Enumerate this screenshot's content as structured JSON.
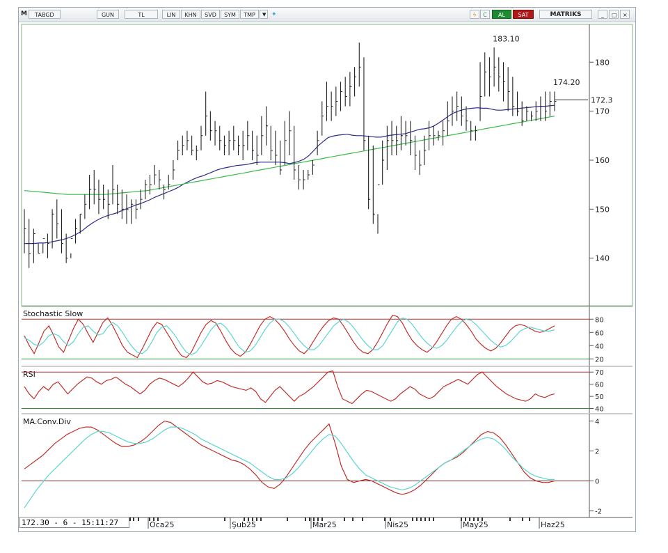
{
  "toolbar": {
    "m": "M",
    "symbol": "TABGD",
    "period": "GUN",
    "currency": "TL",
    "buttons": [
      "LIN",
      "KHN",
      "SVD",
      "SYM",
      "TMP"
    ],
    "al": "AL",
    "sat": "SAT",
    "brand": "MATRIKS"
  },
  "status": "172.30 - 6 - 15:11:27",
  "chart_data": [
    {
      "type": "ohlc",
      "panel": "price",
      "y_ticks": [
        140,
        150,
        160,
        170,
        180
      ],
      "ylim": [
        131,
        187
      ],
      "last_price_label": "172.3",
      "annotations": [
        {
          "text": "183.10",
          "index": 104,
          "value": 183.1
        },
        {
          "text": "174.20",
          "index": 117,
          "value": 174.2
        }
      ],
      "highs": [
        150,
        148,
        146,
        143,
        141,
        145,
        150,
        152,
        150,
        145,
        141,
        148,
        149,
        153,
        157,
        158,
        156,
        155,
        154,
        159,
        155,
        154,
        153,
        152,
        152,
        154,
        156,
        157,
        159,
        158,
        155,
        157,
        160,
        164,
        165,
        166,
        165,
        163,
        167,
        174,
        170,
        168,
        167,
        165,
        166,
        167,
        165,
        166,
        168,
        166,
        165,
        169,
        171,
        167,
        166,
        164,
        168,
        170,
        167,
        159,
        158,
        158,
        160,
        166,
        172,
        176,
        174,
        175,
        176,
        177,
        178,
        179,
        184,
        181,
        165,
        163,
        149,
        164,
        167,
        168,
        167,
        169,
        168,
        168,
        165,
        162,
        165,
        168,
        167,
        166,
        168,
        172,
        173,
        174,
        173,
        171,
        168,
        167,
        180,
        182,
        181,
        183,
        181,
        180,
        179,
        177,
        174,
        172,
        171,
        170,
        172,
        173,
        174,
        174,
        174
      ],
      "lows": [
        141,
        138,
        139,
        141,
        143,
        140,
        142,
        144,
        141,
        139,
        140,
        143,
        145,
        148,
        150,
        151,
        149,
        150,
        148,
        151,
        149,
        148,
        147,
        147,
        148,
        150,
        152,
        153,
        155,
        154,
        152,
        154,
        156,
        160,
        161,
        162,
        161,
        160,
        162,
        165,
        164,
        163,
        162,
        161,
        161,
        162,
        161,
        160,
        162,
        160,
        159,
        161,
        163,
        160,
        159,
        157,
        159,
        161,
        156,
        154,
        154,
        156,
        157,
        161,
        165,
        168,
        168,
        169,
        170,
        171,
        171,
        173,
        175,
        162,
        150,
        147,
        145,
        155,
        158,
        161,
        161,
        162,
        163,
        161,
        158,
        157,
        159,
        162,
        163,
        164,
        163,
        165,
        167,
        168,
        167,
        166,
        164,
        164,
        168,
        173,
        173,
        175,
        174,
        172,
        170,
        169,
        169,
        167,
        168,
        168,
        168,
        168,
        168,
        169,
        170
      ],
      "closes": [
        146,
        141,
        145,
        141,
        144,
        143,
        149,
        147,
        143,
        140,
        144,
        146,
        149,
        151,
        154,
        154,
        152,
        152,
        151,
        154,
        151,
        150,
        150,
        151,
        150,
        152,
        155,
        155,
        157,
        156,
        154,
        155,
        158,
        162,
        163,
        164,
        162,
        162,
        165,
        169,
        166,
        166,
        164,
        163,
        164,
        164,
        163,
        163,
        165,
        162,
        161,
        165,
        167,
        162,
        161,
        158,
        164,
        166,
        158,
        156,
        156,
        157,
        159,
        164,
        169,
        171,
        171,
        172,
        174,
        173,
        175,
        177,
        179,
        164,
        152,
        149,
        155,
        160,
        164,
        164,
        164,
        165,
        165,
        164,
        161,
        159,
        162,
        165,
        165,
        165,
        166,
        168,
        170,
        171,
        169,
        168,
        166,
        166,
        173,
        178,
        177,
        179,
        177,
        176,
        174,
        171,
        170,
        168,
        170,
        169,
        170,
        171,
        170,
        172,
        172
      ],
      "series": [
        {
          "name": "MA short",
          "color": "#2b2b8c",
          "values": [
            143.0,
            143.0,
            143.0,
            143.1,
            143.1,
            143.2,
            143.4,
            143.6,
            143.8,
            144.1,
            144.5,
            145.0,
            145.6,
            146.4,
            147.1,
            147.7,
            148.2,
            148.6,
            148.9,
            149.2,
            149.6,
            150.0,
            150.4,
            150.8,
            151.1,
            151.5,
            151.9,
            152.4,
            152.8,
            153.2,
            153.6,
            154.0,
            154.5,
            155.1,
            155.6,
            156.1,
            156.5,
            156.8,
            157.2,
            157.6,
            158.0,
            158.3,
            158.5,
            158.7,
            158.9,
            159.0,
            159.1,
            159.3,
            159.5,
            159.6,
            159.6,
            159.6,
            159.6,
            159.6,
            159.5,
            159.3,
            159.5,
            159.8,
            160.2,
            160.9,
            161.9,
            163.0,
            163.8,
            164.6,
            164.9,
            165.1,
            165.2,
            165.3,
            165.1,
            165.0,
            165.0,
            164.9,
            164.8,
            164.7,
            164.7,
            164.9,
            165.1,
            165.2,
            165.3,
            165.4,
            165.7,
            166.0,
            166.3,
            166.4,
            166.6,
            167.0,
            167.6,
            168.3,
            169.0,
            169.6,
            170.0,
            170.3,
            170.5,
            170.6,
            170.7,
            170.6,
            170.6,
            170.4,
            170.2,
            170.2,
            170.3,
            170.4,
            170.5,
            170.6,
            170.7,
            170.8,
            170.9,
            171.0,
            171.0,
            171.1,
            171.2
          ]
        },
        {
          "name": "MA long",
          "color": "#3dbb4a",
          "values": [
            153.8,
            153.7,
            153.6,
            153.5,
            153.4,
            153.3,
            153.2,
            153.1,
            153.0,
            153.0,
            153.0,
            153.0,
            153.0,
            153.0,
            153.0,
            153.0,
            153.1,
            153.2,
            153.3,
            153.4,
            153.5,
            153.6,
            153.7,
            153.8,
            154.0,
            154.2,
            154.4,
            154.6,
            154.8,
            155.0,
            155.2,
            155.4,
            155.6,
            155.8,
            156.0,
            156.2,
            156.4,
            156.6,
            156.8,
            157.0,
            157.2,
            157.4,
            157.6,
            157.8,
            158.0,
            158.2,
            158.4,
            158.6,
            158.8,
            159.0,
            159.2,
            159.4,
            159.6,
            159.8,
            160.0,
            160.2,
            160.4,
            160.6,
            160.8,
            161.0,
            161.2,
            161.4,
            161.6,
            161.8,
            162.0,
            162.2,
            162.4,
            162.6,
            162.8,
            163.0,
            163.2,
            163.4,
            163.6,
            163.8,
            164.0,
            164.2,
            164.4,
            164.6,
            164.8,
            165.0,
            165.2,
            165.4,
            165.6,
            165.8,
            166.0,
            166.2,
            166.4,
            166.6,
            166.8,
            167.0,
            167.2,
            167.4,
            167.6,
            167.8,
            168.0,
            168.2,
            168.4,
            168.6,
            168.8,
            169.0
          ]
        }
      ]
    },
    {
      "type": "line",
      "panel": "stochastic",
      "title": "Stochastic Slow",
      "y_ticks": [
        20,
        40,
        60,
        80
      ],
      "ylim": [
        13,
        95
      ],
      "levels": [
        {
          "value": 80,
          "color": "#b03030"
        },
        {
          "value": 20,
          "color": "#2e8b3a"
        }
      ],
      "series": [
        {
          "name": "%K",
          "color": "#c0302a",
          "values": [
            55,
            40,
            28,
            45,
            62,
            70,
            55,
            38,
            30,
            48,
            66,
            80,
            72,
            58,
            45,
            60,
            75,
            82,
            70,
            55,
            40,
            30,
            26,
            22,
            35,
            50,
            65,
            75,
            72,
            60,
            48,
            35,
            25,
            22,
            30,
            45,
            60,
            72,
            78,
            74,
            62,
            48,
            36,
            28,
            24,
            30,
            42,
            56,
            70,
            80,
            84,
            80,
            72,
            62,
            50,
            40,
            32,
            28,
            36,
            48,
            60,
            70,
            78,
            82,
            80,
            70,
            58,
            46,
            36,
            30,
            28,
            34,
            46,
            60,
            74,
            86,
            84,
            74,
            60,
            48,
            40,
            34,
            30,
            36,
            46,
            58,
            70,
            80,
            84,
            80,
            72,
            62,
            50,
            42,
            36,
            32,
            36,
            44,
            54,
            64,
            70,
            72,
            70,
            66,
            62,
            60,
            62,
            66,
            70
          ]
        },
        {
          "name": "%D",
          "color": "#5ad6d0",
          "values": [
            52,
            48,
            42,
            40,
            46,
            55,
            58,
            55,
            46,
            40,
            46,
            58,
            68,
            70,
            62,
            56,
            58,
            68,
            75,
            70,
            60,
            48,
            38,
            30,
            28,
            34,
            46,
            60,
            68,
            70,
            62,
            52,
            40,
            30,
            26,
            30,
            40,
            52,
            64,
            72,
            74,
            68,
            58,
            46,
            36,
            30,
            32,
            40,
            52,
            64,
            74,
            80,
            80,
            76,
            68,
            58,
            48,
            40,
            34,
            34,
            40,
            50,
            60,
            70,
            76,
            80,
            76,
            68,
            58,
            48,
            40,
            34,
            34,
            40,
            52,
            64,
            76,
            82,
            80,
            72,
            62,
            52,
            44,
            38,
            36,
            40,
            48,
            58,
            68,
            76,
            80,
            78,
            72,
            64,
            56,
            48,
            42,
            38,
            40,
            46,
            54,
            62,
            66,
            68,
            66,
            64,
            62,
            62,
            64
          ]
        }
      ]
    },
    {
      "type": "line",
      "panel": "rsi",
      "title": "RSI",
      "y_ticks": [
        40,
        50,
        60,
        70
      ],
      "ylim": [
        38,
        73
      ],
      "levels": [
        {
          "value": 70,
          "color": "#b03030"
        },
        {
          "value": 40,
          "color": "#2e8b3a"
        }
      ],
      "series": [
        {
          "name": "RSI",
          "color": "#c0302a",
          "values": [
            58,
            52,
            48,
            54,
            58,
            55,
            60,
            62,
            57,
            52,
            56,
            60,
            63,
            66,
            65,
            62,
            60,
            63,
            64,
            66,
            63,
            60,
            58,
            55,
            52,
            55,
            60,
            63,
            65,
            64,
            62,
            60,
            58,
            61,
            65,
            70,
            66,
            62,
            60,
            61,
            63,
            62,
            60,
            58,
            57,
            56,
            55,
            57,
            54,
            48,
            45,
            50,
            55,
            58,
            54,
            50,
            46,
            50,
            52,
            55,
            58,
            62,
            66,
            70,
            71,
            58,
            48,
            46,
            44,
            48,
            52,
            55,
            54,
            52,
            50,
            48,
            46,
            48,
            52,
            55,
            58,
            56,
            52,
            50,
            48,
            50,
            54,
            58,
            60,
            62,
            64,
            62,
            60,
            64,
            68,
            70,
            66,
            62,
            58,
            55,
            52,
            50,
            48,
            47,
            46,
            48,
            52,
            50,
            49,
            51,
            52
          ]
        }
      ]
    },
    {
      "type": "line",
      "panel": "macd",
      "title": "MA.Conv.Div",
      "y_ticks": [
        -2,
        0,
        2,
        4
      ],
      "ylim": [
        -2.3,
        4.3
      ],
      "levels": [
        {
          "value": 0,
          "color": "#7a2a2a"
        }
      ],
      "series": [
        {
          "name": "MACD",
          "color": "#c0302a",
          "values": [
            0.8,
            1.1,
            1.4,
            1.7,
            2.1,
            2.5,
            2.8,
            3.1,
            3.3,
            3.5,
            3.6,
            3.6,
            3.4,
            3.1,
            2.8,
            2.5,
            2.3,
            2.3,
            2.4,
            2.6,
            2.9,
            3.3,
            3.7,
            4.0,
            3.9,
            3.6,
            3.3,
            3.0,
            2.7,
            2.4,
            2.2,
            2.0,
            1.8,
            1.6,
            1.4,
            1.3,
            1.1,
            0.8,
            0.4,
            -0.1,
            -0.4,
            -0.5,
            -0.2,
            0.3,
            0.9,
            1.5,
            2.1,
            2.6,
            3.0,
            3.4,
            3.8,
            2.5,
            1.0,
            0.1,
            -0.1,
            0.0,
            0.1,
            0.0,
            -0.2,
            -0.4,
            -0.6,
            -0.8,
            -0.9,
            -0.8,
            -0.6,
            -0.3,
            0.1,
            0.5,
            0.9,
            1.2,
            1.4,
            1.6,
            1.9,
            2.3,
            2.7,
            3.1,
            3.3,
            3.2,
            2.9,
            2.4,
            1.8,
            1.2,
            0.6,
            0.2,
            0.0,
            -0.1,
            -0.1,
            0.0
          ]
        },
        {
          "name": "Signal",
          "color": "#5ad6d0",
          "values": [
            -1.8,
            -1.2,
            -0.6,
            -0.1,
            0.4,
            0.8,
            1.2,
            1.6,
            2.0,
            2.4,
            2.8,
            3.1,
            3.3,
            3.3,
            3.2,
            3.0,
            2.8,
            2.6,
            2.5,
            2.5,
            2.6,
            2.8,
            3.1,
            3.4,
            3.6,
            3.6,
            3.5,
            3.3,
            3.1,
            2.8,
            2.6,
            2.4,
            2.2,
            2.0,
            1.8,
            1.6,
            1.4,
            1.2,
            0.9,
            0.6,
            0.3,
            0.1,
            0.1,
            0.2,
            0.5,
            0.9,
            1.4,
            1.9,
            2.4,
            2.8,
            3.1,
            3.0,
            2.5,
            1.9,
            1.3,
            0.8,
            0.4,
            0.2,
            0.0,
            -0.2,
            -0.4,
            -0.5,
            -0.6,
            -0.5,
            -0.3,
            0.0,
            0.3,
            0.6,
            0.9,
            1.2,
            1.4,
            1.7,
            2.0,
            2.3,
            2.6,
            2.8,
            2.9,
            2.8,
            2.5,
            2.1,
            1.6,
            1.2,
            0.8,
            0.5,
            0.3,
            0.2,
            0.1,
            0.1
          ]
        }
      ]
    }
  ],
  "x_axis": {
    "labels": [
      "Oca25",
      "Şub25",
      "Mar25",
      "Nis25",
      "May25",
      "Haz25"
    ]
  }
}
